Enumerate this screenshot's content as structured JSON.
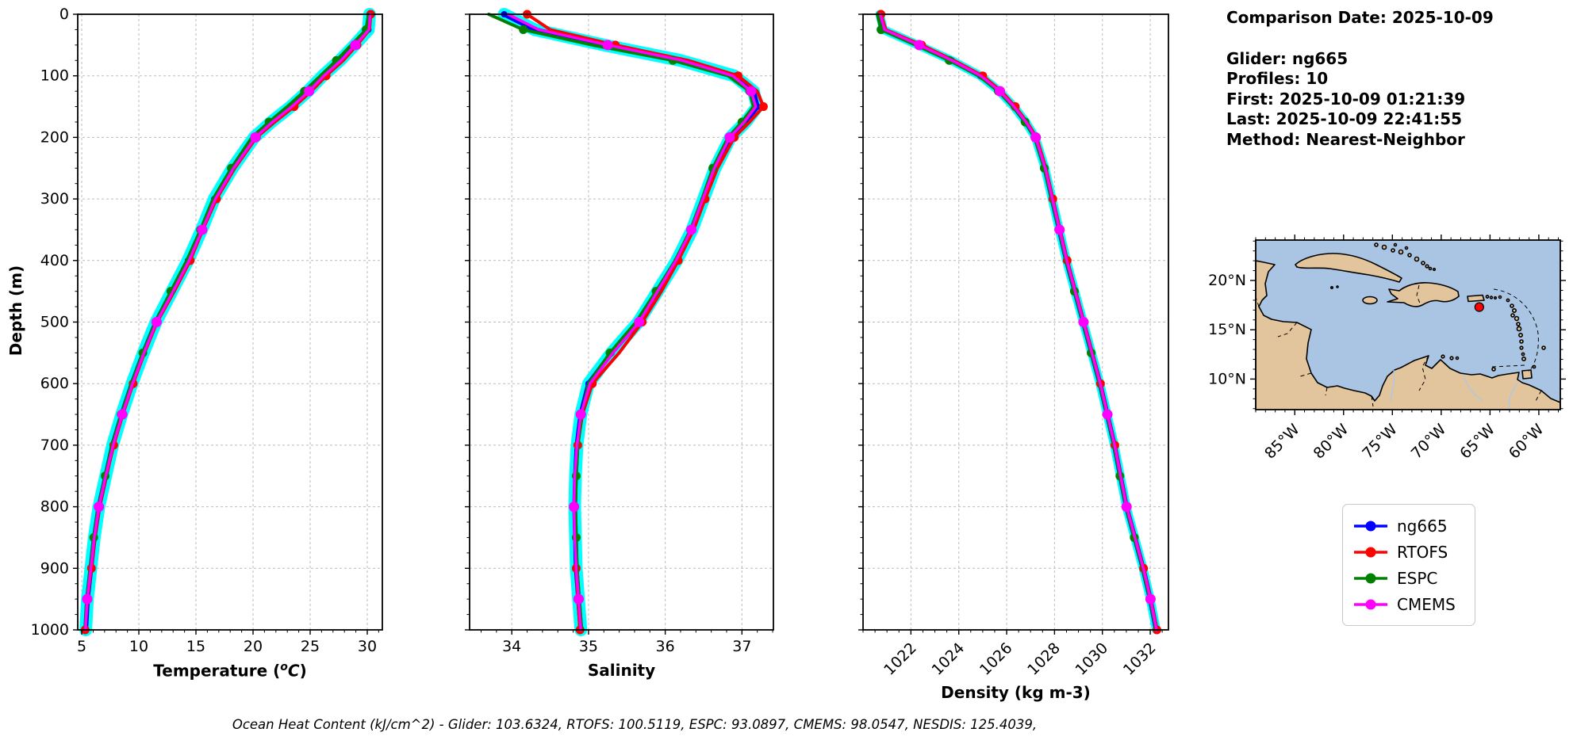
{
  "figure": {
    "background": "#ffffff",
    "ylabel": "Depth (m)"
  },
  "info_panel": {
    "comparison_date": "Comparison Date: 2025-10-09",
    "lines": [
      "Glider: ng665",
      "Profiles: 10",
      "First: 2025-10-09 01:21:39",
      "Last: 2025-10-09 22:41:55",
      "Method: Nearest-Neighbor"
    ]
  },
  "caption": "Ocean Heat Content (kJ/cm^2) - Glider: 103.6324,  RTOFS: 100.5119,  ESPC: 93.0897,  CMEMS: 98.0547,  NESDIS: 125.4039,",
  "legend": {
    "items": [
      {
        "label": "ng665",
        "color": "#0000ff"
      },
      {
        "label": "RTOFS",
        "color": "#ff0000"
      },
      {
        "label": "ESPC",
        "color": "#008000"
      },
      {
        "label": "CMEMS",
        "color": "#ff00ff"
      }
    ]
  },
  "chart_data": [
    {
      "type": "line",
      "xlabel": "Temperature (oC)",
      "xlabel_parts": {
        "pre": "Temperature (",
        "sup": "o",
        "base": "C",
        "post": ")"
      },
      "ylabel": "Depth (m)",
      "xlim": [
        4.65,
        31.32
      ],
      "ylim": [
        1000,
        0
      ],
      "xticks": [
        5,
        10,
        15,
        20,
        25,
        30
      ],
      "yticks": [
        0,
        100,
        200,
        300,
        400,
        500,
        600,
        700,
        800,
        900,
        1000
      ],
      "grid": true,
      "envelope_color": "#00ffff",
      "depths": [
        0,
        25,
        50,
        75,
        100,
        125,
        150,
        175,
        200,
        250,
        300,
        350,
        400,
        450,
        500,
        550,
        600,
        650,
        700,
        750,
        800,
        850,
        900,
        950,
        1000
      ],
      "series": [
        {
          "name": "ng665",
          "color": "#0000ff",
          "values": [
            30.2,
            30.1,
            28.9,
            27.6,
            26.1,
            24.8,
            23.3,
            21.6,
            20.1,
            18.2,
            16.6,
            15.5,
            14.3,
            12.9,
            11.5,
            10.4,
            9.4,
            8.5,
            7.7,
            7.1,
            6.5,
            6.1,
            5.8,
            5.5,
            5.35
          ]
        },
        {
          "name": "RTOFS",
          "color": "#ff0000",
          "values": [
            30.3,
            30.2,
            29.1,
            27.9,
            26.4,
            25.1,
            23.6,
            21.9,
            20.3,
            18.4,
            16.8,
            15.6,
            14.5,
            13.1,
            11.6,
            10.5,
            9.5,
            8.6,
            7.8,
            7.15,
            6.55,
            6.15,
            5.85,
            5.5,
            5.3
          ]
        },
        {
          "name": "ESPC",
          "color": "#008000",
          "values": [
            30.1,
            29.9,
            28.6,
            27.3,
            25.9,
            24.5,
            23.0,
            21.4,
            19.9,
            18.1,
            16.5,
            15.4,
            14.2,
            12.8,
            11.45,
            10.35,
            9.35,
            8.45,
            7.65,
            7.05,
            6.45,
            6.05,
            5.75,
            5.45,
            5.3
          ]
        },
        {
          "name": "CMEMS",
          "color": "#ff00ff",
          "values": [
            30.25,
            30.15,
            28.95,
            27.7,
            26.2,
            24.9,
            23.4,
            21.7,
            20.2,
            18.3,
            16.7,
            15.55,
            14.4,
            13.0,
            11.55,
            10.45,
            9.45,
            8.55,
            7.75,
            7.1,
            6.5,
            6.1,
            5.8,
            5.48,
            5.32
          ]
        }
      ]
    },
    {
      "type": "line",
      "xlabel": "Salinity",
      "ylabel": "Depth (m)",
      "xlim": [
        33.45,
        37.41
      ],
      "ylim": [
        1000,
        0
      ],
      "xticks": [
        34,
        35,
        36,
        37
      ],
      "yticks": [
        0,
        100,
        200,
        300,
        400,
        500,
        600,
        700,
        800,
        900,
        1000
      ],
      "grid": true,
      "envelope_color": "#00ffff",
      "depths": [
        0,
        25,
        50,
        75,
        100,
        125,
        150,
        175,
        200,
        250,
        300,
        350,
        400,
        450,
        500,
        550,
        600,
        650,
        700,
        750,
        800,
        850,
        900,
        950,
        1000
      ],
      "series": [
        {
          "name": "ng665",
          "color": "#0000ff",
          "values": [
            33.9,
            34.3,
            35.2,
            36.2,
            36.9,
            37.15,
            37.2,
            37.05,
            36.85,
            36.65,
            36.5,
            36.35,
            36.15,
            35.9,
            35.65,
            35.3,
            35.0,
            34.9,
            34.85,
            34.83,
            34.82,
            34.83,
            34.84,
            34.87,
            34.9
          ]
        },
        {
          "name": "RTOFS",
          "color": "#ff0000",
          "values": [
            34.2,
            34.5,
            35.35,
            36.3,
            36.95,
            37.2,
            37.28,
            37.1,
            36.9,
            36.68,
            36.52,
            36.37,
            36.17,
            35.95,
            35.7,
            35.4,
            35.05,
            34.92,
            34.86,
            34.83,
            34.82,
            34.83,
            34.84,
            34.86,
            34.89
          ]
        },
        {
          "name": "ESPC",
          "color": "#008000",
          "values": [
            33.7,
            34.15,
            35.05,
            36.1,
            36.82,
            37.1,
            37.15,
            37.0,
            36.82,
            36.62,
            36.48,
            36.33,
            36.13,
            35.88,
            35.62,
            35.28,
            35.0,
            34.91,
            34.86,
            34.84,
            34.83,
            34.84,
            34.85,
            34.88,
            34.91
          ]
        },
        {
          "name": "CMEMS",
          "color": "#ff00ff",
          "values": [
            33.95,
            34.35,
            35.25,
            36.22,
            36.88,
            37.12,
            37.18,
            37.03,
            36.84,
            36.64,
            36.49,
            36.34,
            36.14,
            35.9,
            35.66,
            35.32,
            35.02,
            34.9,
            34.85,
            34.82,
            34.81,
            34.82,
            34.84,
            34.87,
            34.9
          ]
        }
      ]
    },
    {
      "type": "line",
      "xlabel": "Density (kg m-3)",
      "ylabel": "Depth (m)",
      "xlim": [
        1020.0,
        1032.76
      ],
      "ylim": [
        1000,
        0
      ],
      "xticks": [
        1022,
        1024,
        1026,
        1028,
        1030,
        1032
      ],
      "xtick_rotation": 45,
      "yticks": [
        0,
        100,
        200,
        300,
        400,
        500,
        600,
        700,
        800,
        900,
        1000
      ],
      "grid": true,
      "envelope_color": "#00ffff",
      "depths": [
        0,
        25,
        50,
        75,
        100,
        125,
        150,
        175,
        200,
        250,
        300,
        350,
        400,
        450,
        500,
        550,
        600,
        650,
        700,
        750,
        800,
        850,
        900,
        950,
        1000
      ],
      "series": [
        {
          "name": "ng665",
          "color": "#0000ff",
          "values": [
            1020.7,
            1020.85,
            1022.3,
            1023.7,
            1024.9,
            1025.7,
            1026.3,
            1026.8,
            1027.2,
            1027.6,
            1027.9,
            1028.2,
            1028.5,
            1028.85,
            1029.2,
            1029.55,
            1029.9,
            1030.2,
            1030.5,
            1030.75,
            1031.0,
            1031.35,
            1031.7,
            1032.0,
            1032.25
          ]
        },
        {
          "name": "RTOFS",
          "color": "#ff0000",
          "values": [
            1020.75,
            1020.95,
            1022.45,
            1023.8,
            1025.0,
            1025.78,
            1026.36,
            1026.85,
            1027.25,
            1027.64,
            1027.93,
            1028.23,
            1028.53,
            1028.88,
            1029.23,
            1029.58,
            1029.92,
            1030.22,
            1030.52,
            1030.77,
            1031.02,
            1031.37,
            1031.72,
            1032.02,
            1032.28
          ]
        },
        {
          "name": "ESPC",
          "color": "#008000",
          "values": [
            1020.6,
            1020.75,
            1022.2,
            1023.6,
            1024.84,
            1025.65,
            1026.26,
            1026.77,
            1027.17,
            1027.57,
            1027.88,
            1028.18,
            1028.48,
            1028.83,
            1029.18,
            1029.53,
            1029.88,
            1030.18,
            1030.48,
            1030.73,
            1030.98,
            1031.33,
            1031.68,
            1031.98,
            1032.24
          ]
        },
        {
          "name": "CMEMS",
          "color": "#ff00ff",
          "values": [
            1020.72,
            1020.9,
            1022.35,
            1023.72,
            1024.92,
            1025.72,
            1026.31,
            1026.81,
            1027.21,
            1027.61,
            1027.91,
            1028.21,
            1028.51,
            1028.86,
            1029.21,
            1029.56,
            1029.91,
            1030.21,
            1030.51,
            1030.76,
            1031.01,
            1031.36,
            1031.71,
            1032.01,
            1032.26
          ]
        }
      ]
    },
    {
      "type": "map",
      "region": "Caribbean",
      "extent": {
        "lon": [
          -89.0,
          -57.8
        ],
        "lat": [
          6.9,
          24.1
        ]
      },
      "lat_ticks": [
        {
          "value": 20,
          "label": "20°N"
        },
        {
          "value": 15,
          "label": "15°N"
        },
        {
          "value": 10,
          "label": "10°N"
        }
      ],
      "lon_ticks": [
        {
          "value": -85,
          "label": "85°W"
        },
        {
          "value": -80,
          "label": "80°W"
        },
        {
          "value": -75,
          "label": "75°W"
        },
        {
          "value": -70,
          "label": "70°W"
        },
        {
          "value": -65,
          "label": "65°W"
        },
        {
          "value": -60,
          "label": "60°W"
        }
      ],
      "marker": {
        "lon": -66.1,
        "lat": 17.3,
        "color": "#ff0000"
      },
      "water_color": "#a9c5e3",
      "land_color": "#e2c59c"
    }
  ]
}
